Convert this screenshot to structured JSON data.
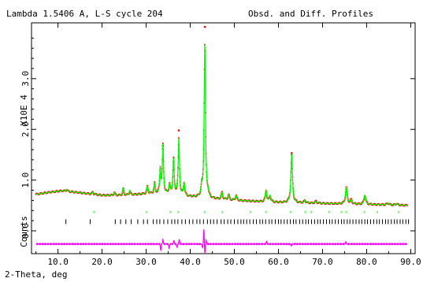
{
  "chart_data": {
    "type": "line",
    "header_left": "Lambda 1.5406 A, L-S cycle  204",
    "header_right": "Obsd. and Diff. Profiles",
    "y_multiplier_label": "X10E  4",
    "counts_label": "Counts",
    "xlabel": "2-Theta, deg",
    "xlim": [
      4.0,
      91.0
    ],
    "ylim": [
      -0.45,
      4.1
    ],
    "x_ticks": [
      10,
      20,
      30,
      40,
      50,
      60,
      70,
      80,
      90
    ],
    "x_tick_labels": [
      "10.0",
      "20.0",
      "30.0",
      "40.0",
      "50.0",
      "60.0",
      "70.0",
      "80.0",
      "90.0"
    ],
    "y_ticks": [
      0.0,
      1.0,
      2.0,
      3.0
    ],
    "y_tick_labels": [
      "0.0",
      "1.0",
      "2.0",
      "3.0"
    ],
    "background_points": [
      [
        5,
        0.72
      ],
      [
        8,
        0.76
      ],
      [
        11,
        0.79
      ],
      [
        15,
        0.75
      ],
      [
        20,
        0.7
      ],
      [
        25,
        0.7
      ],
      [
        30,
        0.73
      ],
      [
        35,
        0.72
      ],
      [
        40,
        0.67
      ],
      [
        45,
        0.63
      ],
      [
        50,
        0.6
      ],
      [
        55,
        0.58
      ],
      [
        60,
        0.56
      ],
      [
        65,
        0.55
      ],
      [
        70,
        0.54
      ],
      [
        75,
        0.53
      ],
      [
        80,
        0.52
      ],
      [
        85,
        0.51
      ],
      [
        90,
        0.5
      ]
    ],
    "peaks": [
      {
        "x": 12.0,
        "height": 0.04
      },
      {
        "x": 17.9,
        "height": 0.05
      },
      {
        "x": 22.8,
        "height": 0.06
      },
      {
        "x": 24.8,
        "height": 0.13
      },
      {
        "x": 26.3,
        "height": 0.08
      },
      {
        "x": 30.3,
        "height": 0.15
      },
      {
        "x": 31.9,
        "height": 0.21
      },
      {
        "x": 33.2,
        "height": 0.48
      },
      {
        "x": 33.8,
        "height": 0.95
      },
      {
        "x": 35.3,
        "height": 0.18
      },
      {
        "x": 36.2,
        "height": 0.7
      },
      {
        "x": 37.4,
        "height": 1.1
      },
      {
        "x": 38.6,
        "height": 0.25
      },
      {
        "x": 42.6,
        "height": 0.16
      },
      {
        "x": 43.3,
        "height": 3.05
      },
      {
        "x": 44.0,
        "height": 0.08
      },
      {
        "x": 47.2,
        "height": 0.14
      },
      {
        "x": 48.7,
        "height": 0.1
      },
      {
        "x": 50.4,
        "height": 0.1
      },
      {
        "x": 57.2,
        "height": 0.22
      },
      {
        "x": 58.1,
        "height": 0.12
      },
      {
        "x": 63.0,
        "height": 0.97
      },
      {
        "x": 66.0,
        "height": 0.05
      },
      {
        "x": 68.5,
        "height": 0.04
      },
      {
        "x": 75.4,
        "height": 0.33
      },
      {
        "x": 76.5,
        "height": 0.08
      },
      {
        "x": 79.6,
        "height": 0.18
      },
      {
        "x": 84.8,
        "height": 0.04
      },
      {
        "x": 86.8,
        "height": 0.03
      }
    ],
    "obs_markers_above_peaks": [
      {
        "x": 33.8,
        "y": 1.68
      },
      {
        "x": 37.4,
        "y": 1.98
      },
      {
        "x": 43.3,
        "y": 4.02
      },
      {
        "x": 63.0,
        "y": 1.53
      }
    ],
    "phase1_reflections": [
      18.2,
      30.1,
      35.5,
      37.3,
      43.3,
      47.3,
      53.7,
      57.2,
      62.8,
      66.1,
      67.4,
      71.5,
      74.3,
      75.4,
      79.5,
      82.4,
      87.3
    ],
    "phase2_reflections": [
      11.8,
      17.3,
      23.0,
      24.2,
      25.4,
      26.6,
      28.1,
      29.4,
      30.3,
      31.6,
      32.4,
      33.1,
      34.0,
      34.9,
      35.8,
      36.5,
      37.2,
      38.1,
      38.9,
      39.8,
      40.6,
      41.5,
      42.2,
      43.0,
      43.9,
      44.6,
      45.3,
      46.1,
      47.0,
      47.7,
      48.5,
      49.2,
      50.0,
      50.8,
      51.5,
      52.1,
      52.8,
      53.5,
      54.3,
      55.0,
      55.8,
      56.4,
      57.1,
      57.9,
      58.5,
      59.3,
      60.0,
      60.6,
      61.3,
      62.0,
      62.7,
      63.4,
      64.0,
      64.8,
      65.5,
      66.2,
      66.8,
      67.5,
      68.2,
      68.9,
      69.5,
      70.2,
      70.9,
      71.6,
      72.2,
      72.9,
      73.6,
      74.3,
      74.9,
      75.6,
      76.2,
      76.9,
      77.6,
      78.3,
      78.9,
      79.6,
      80.2,
      80.9,
      81.6,
      82.3,
      82.9,
      83.6,
      84.3,
      84.9,
      85.6,
      86.3,
      86.9,
      87.6,
      88.2,
      88.9,
      89.5
    ],
    "phase1_level": 0.37,
    "phase2_level": 0.18,
    "difference_baseline": -0.26,
    "difference_spikes": [
      {
        "x": 33.3,
        "amp": -0.12
      },
      {
        "x": 33.8,
        "amp": 0.09
      },
      {
        "x": 35.2,
        "amp": -0.08
      },
      {
        "x": 36.3,
        "amp": 0.07
      },
      {
        "x": 37.0,
        "amp": -0.07
      },
      {
        "x": 37.5,
        "amp": 0.09
      },
      {
        "x": 42.8,
        "amp": -0.08
      },
      {
        "x": 43.1,
        "amp": 0.3
      },
      {
        "x": 43.3,
        "amp": -0.2
      },
      {
        "x": 43.6,
        "amp": 0.08
      },
      {
        "x": 57.3,
        "amp": 0.05
      },
      {
        "x": 62.9,
        "amp": -0.04
      },
      {
        "x": 75.3,
        "amp": 0.04
      }
    ],
    "colors": {
      "observed": "#ff0000",
      "calculated": "#00ff00",
      "phase1_ticks": "#90ee90",
      "phase2_ticks": "#000000",
      "difference": "#ff00ff",
      "axes": "#000000"
    }
  }
}
